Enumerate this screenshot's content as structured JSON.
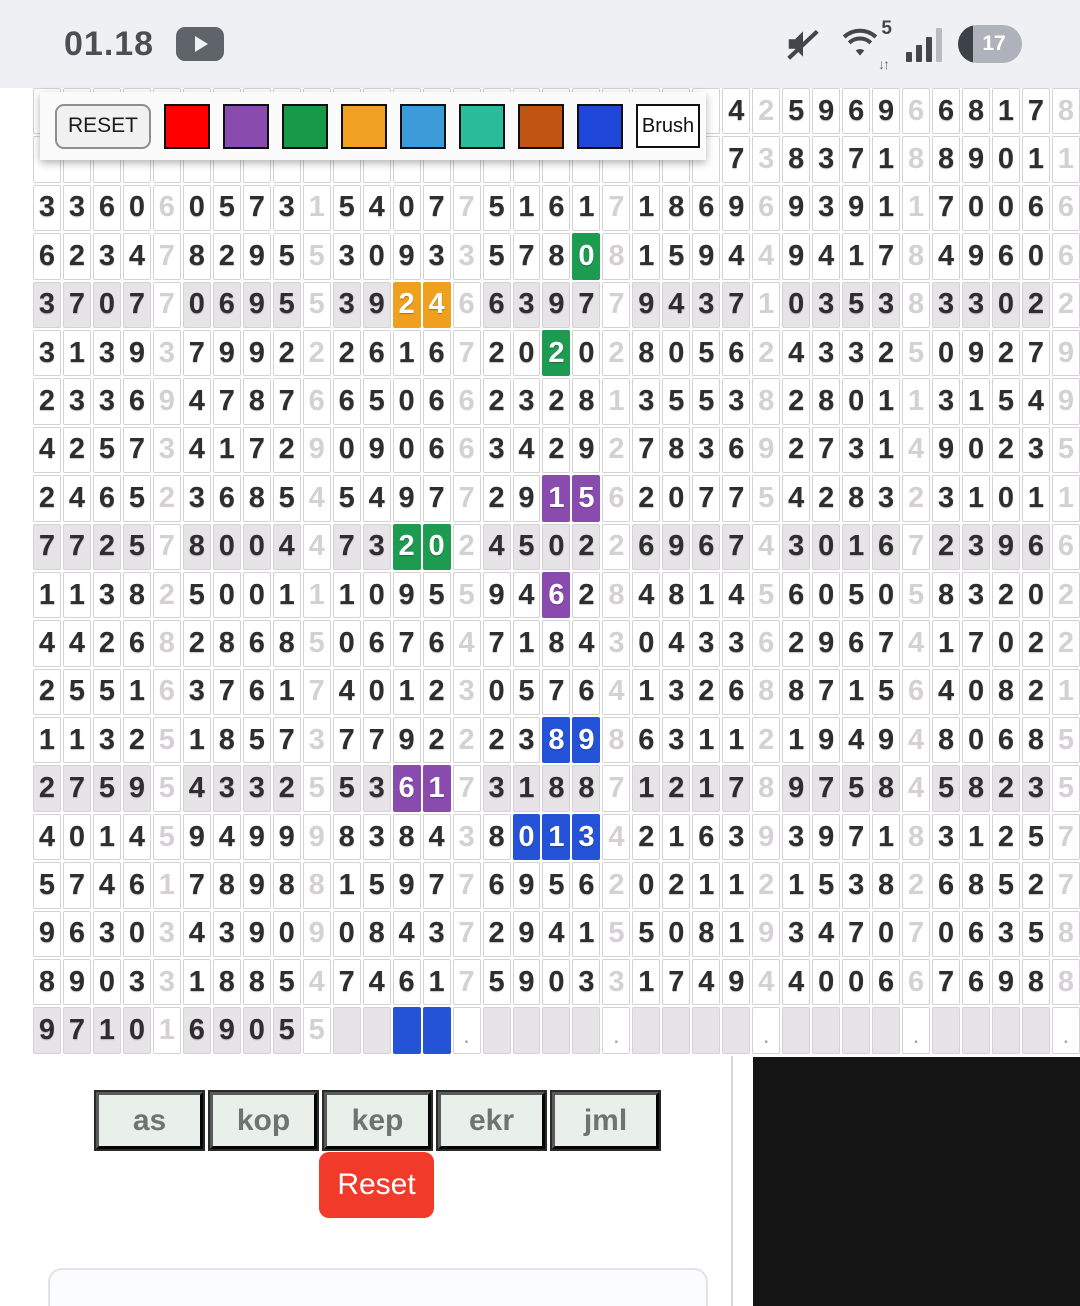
{
  "statusbar": {
    "time": "01.18",
    "wifi_label": "5",
    "wifi_arrows": "↓↑",
    "battery_percent": "17"
  },
  "toolbar": {
    "reset_label": "RESET",
    "brush_label": "Brush",
    "swatches": [
      {
        "name": "red",
        "color": "#fe0000"
      },
      {
        "name": "purple",
        "color": "#8a4bae"
      },
      {
        "name": "green",
        "color": "#169a4a"
      },
      {
        "name": "orange",
        "color": "#f0a122"
      },
      {
        "name": "light-blue",
        "color": "#3d9bd9"
      },
      {
        "name": "teal",
        "color": "#2abd9c"
      },
      {
        "name": "brown",
        "color": "#c25413"
      },
      {
        "name": "blue",
        "color": "#1f47d9"
      }
    ]
  },
  "grid": {
    "columns": 35,
    "rows": [
      "                       425969668178",
      "                       738371889011",
      "33606057315407751617186969391170066",
      "62347829553093357808159449417849606",
      "37077069553924663977943710353833022",
      "31393799222616720202805624332509279",
      "23369478766506623281355382801131549",
      "42573417290906634292783692731490235",
      "24652368545497729156207754283231011",
      "77257800447320245022696743016723966",
      "11382500111095594628481456050583202",
      "44268286850676471843043362967417022",
      "25516376174012305764132688715640821",
      "11325185737792223898631121949480685",
      "27595433255361731887121789758458235",
      "40145949998384380134216393971831257",
      "57461789881597769562021121538268527",
      "96303439090843729415508193470706358",
      "89033188547461759033174944006676988",
      "9710169055    .    .    .    .    ."
    ],
    "gray_rows": [
      4,
      9,
      14,
      19
    ],
    "colors": {
      "green": "#1d9b50",
      "orange": "#efa01f",
      "purple": "#8a4bae",
      "blue": "#2453d8"
    },
    "highlights": [
      [
        3,
        18,
        "green"
      ],
      [
        4,
        12,
        "orange"
      ],
      [
        4,
        13,
        "orange"
      ],
      [
        5,
        17,
        "green"
      ],
      [
        8,
        17,
        "purple"
      ],
      [
        8,
        18,
        "purple"
      ],
      [
        9,
        12,
        "green"
      ],
      [
        9,
        13,
        "green"
      ],
      [
        10,
        17,
        "purple"
      ],
      [
        13,
        17,
        "blue"
      ],
      [
        13,
        18,
        "blue"
      ],
      [
        14,
        12,
        "purple"
      ],
      [
        14,
        13,
        "purple"
      ],
      [
        15,
        16,
        "blue"
      ],
      [
        15,
        17,
        "blue"
      ],
      [
        15,
        18,
        "blue"
      ],
      [
        19,
        12,
        "blue"
      ],
      [
        19,
        13,
        "blue"
      ]
    ]
  },
  "footer": {
    "buttons": [
      "as",
      "kop",
      "kep",
      "ekr",
      "jml"
    ],
    "reset_label": "Reset"
  }
}
